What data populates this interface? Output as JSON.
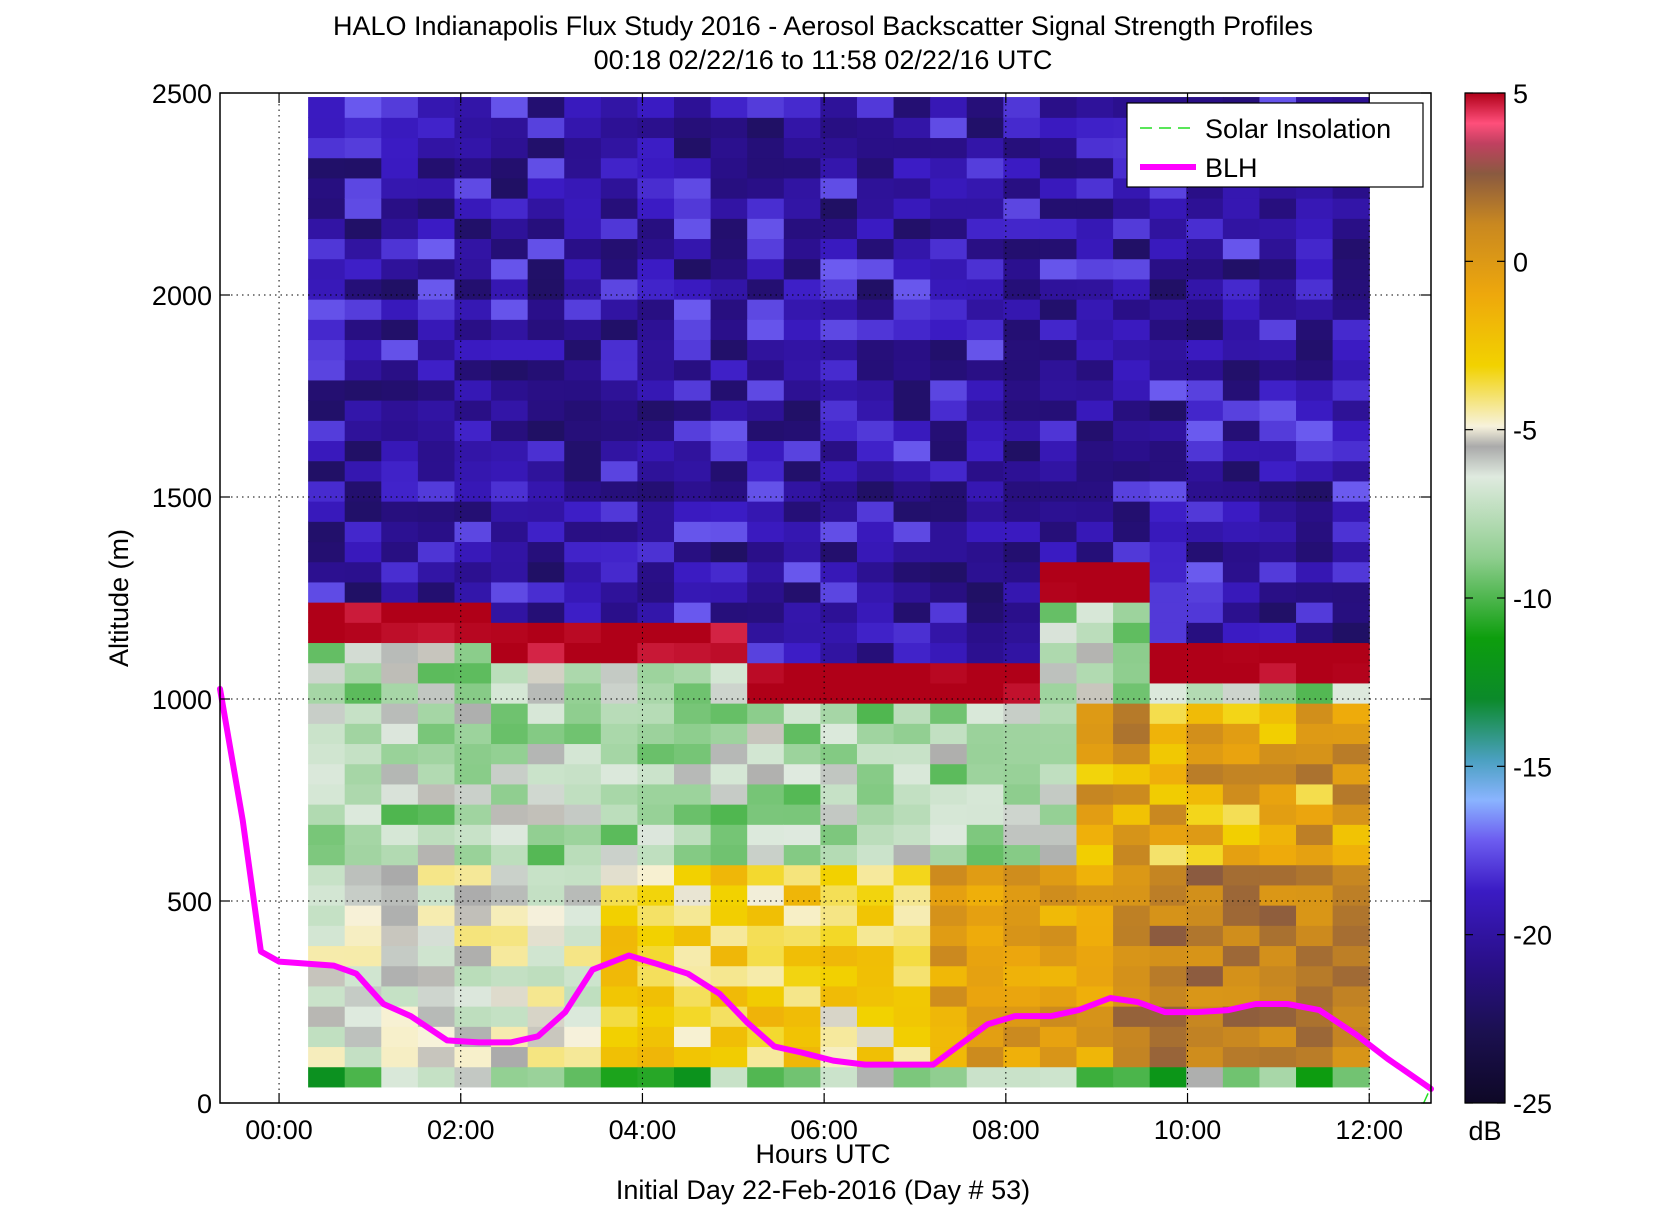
{
  "chart_data": {
    "type": "heatmap",
    "title": "HALO Indianapolis Flux Study 2016 - Aerosol Backscatter Signal Strength Profiles",
    "subtitle": "00:18 02/22/16 to 11:58 02/22/16  UTC",
    "xlabel": "Hours UTC",
    "xlabel2": "Initial Day 22-Feb-2016 (Day # 53)",
    "ylabel": "Altitude (m)",
    "colorbar_label": "dB",
    "x_ticks": [
      "00:00",
      "02:00",
      "04:00",
      "06:00",
      "08:00",
      "10:00",
      "12:00"
    ],
    "x_tick_hours": [
      0,
      2,
      4,
      6,
      8,
      10,
      12
    ],
    "y_ticks": [
      "0",
      "500",
      "1000",
      "1500",
      "2000",
      "2500"
    ],
    "y_tick_values": [
      0,
      500,
      1000,
      1500,
      2000,
      2500
    ],
    "colorbar_ticks": [
      "5",
      "0",
      "-5",
      "-10",
      "-15",
      "-20",
      "-25"
    ],
    "colorbar_tick_values": [
      5,
      0,
      -5,
      -10,
      -15,
      -20,
      -25
    ],
    "xlim_hours": [
      -0.65,
      12.68
    ],
    "ylim": [
      0,
      2500
    ],
    "clim": [
      -25,
      5
    ],
    "grid": "dotted",
    "legend_position": "top-right",
    "legend": [
      "Solar Insolation",
      "BLH"
    ],
    "series": [
      {
        "name": "BLH",
        "color": "#ff00ff",
        "x_hours": [
          -0.65,
          -0.4,
          -0.2,
          0.0,
          0.6,
          0.85,
          1.15,
          1.45,
          1.85,
          2.2,
          2.55,
          2.85,
          3.15,
          3.45,
          3.85,
          4.15,
          4.5,
          4.85,
          5.15,
          5.45,
          5.75,
          6.1,
          6.45,
          6.8,
          7.2,
          7.5,
          7.8,
          8.1,
          8.5,
          8.8,
          9.15,
          9.45,
          9.75,
          10.1,
          10.45,
          10.75,
          11.1,
          11.45,
          11.85,
          12.2,
          12.68
        ],
        "y_m": [
          1025,
          700,
          375,
          350,
          340,
          320,
          245,
          215,
          155,
          150,
          150,
          165,
          225,
          330,
          365,
          345,
          320,
          270,
          200,
          140,
          125,
          105,
          95,
          95,
          95,
          145,
          195,
          215,
          215,
          230,
          260,
          250,
          225,
          225,
          230,
          245,
          245,
          230,
          170,
          110,
          35
        ]
      },
      {
        "name": "Solar Insolation",
        "color": "#22dd22",
        "x_hours": [
          12.6,
          12.68
        ],
        "y_m": [
          0,
          40
        ]
      }
    ],
    "heatmap": {
      "x_start_hours": 0.32,
      "x_end_hours": 12.0,
      "cols": 29,
      "y_bottom_m": 40,
      "y_top_m": 2500,
      "row_height_m": 50,
      "rows": 50,
      "note": "row 0 = bottom layer; values in dB"
    }
  }
}
